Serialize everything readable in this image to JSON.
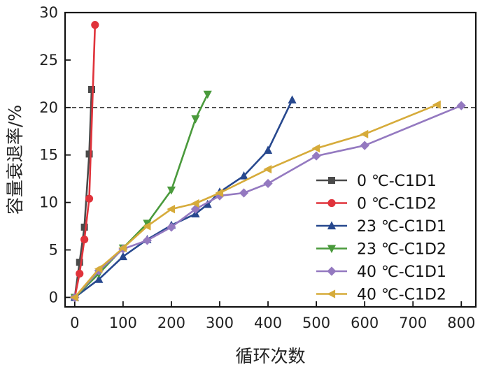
{
  "chart_data": {
    "type": "line",
    "title": "",
    "xlabel": "循环次数",
    "ylabel": "容量衰退率/%",
    "xlim": [
      -20,
      830
    ],
    "ylim": [
      -1,
      30
    ],
    "xticks": [
      0,
      100,
      200,
      300,
      400,
      500,
      600,
      700,
      800
    ],
    "yticks": [
      0,
      5,
      10,
      15,
      20,
      25,
      30
    ],
    "grid": false,
    "legend_position": "bottom-right",
    "reference_line": {
      "y": 20,
      "style": "dashed"
    },
    "series": [
      {
        "name": "0 ℃-C1D1",
        "color": "#4a4a4a",
        "marker": "square",
        "x": [
          0,
          10,
          20,
          30,
          35
        ],
        "y": [
          0,
          3.7,
          7.4,
          15.1,
          21.9
        ]
      },
      {
        "name": "0 ℃-C1D2",
        "color": "#e0333b",
        "marker": "circle",
        "x": [
          0,
          10,
          20,
          30,
          42
        ],
        "y": [
          0,
          2.5,
          6.1,
          10.4,
          28.7
        ]
      },
      {
        "name": "23 ℃-C1D1",
        "color": "#27488e",
        "marker": "triangle-up",
        "x": [
          0,
          50,
          100,
          150,
          200,
          250,
          275,
          300,
          350,
          400,
          450
        ],
        "y": [
          0,
          1.9,
          4.3,
          6.1,
          7.6,
          8.8,
          9.8,
          11.1,
          12.8,
          15.5,
          20.8
        ]
      },
      {
        "name": "23 ℃-C1D2",
        "color": "#4a9a3c",
        "marker": "triangle-down",
        "x": [
          0,
          50,
          100,
          150,
          200,
          250,
          275
        ],
        "y": [
          0,
          2.5,
          5.2,
          7.8,
          11.3,
          18.8,
          21.4
        ]
      },
      {
        "name": "40 ℃-C1D1",
        "color": "#9479c0",
        "marker": "diamond",
        "x": [
          0,
          50,
          100,
          150,
          200,
          250,
          300,
          350,
          400,
          500,
          600,
          800
        ],
        "y": [
          0,
          2.8,
          5.1,
          6.0,
          7.4,
          9.3,
          10.7,
          11.0,
          12.0,
          14.9,
          16.0,
          20.2
        ]
      },
      {
        "name": "40 ℃-C1D2",
        "color": "#d6ab3a",
        "marker": "triangle-left",
        "x": [
          0,
          50,
          100,
          150,
          200,
          250,
          300,
          400,
          500,
          600,
          750
        ],
        "y": [
          0,
          3.0,
          5.2,
          7.5,
          9.3,
          9.9,
          11.0,
          13.5,
          15.7,
          17.2,
          20.3
        ]
      }
    ]
  }
}
